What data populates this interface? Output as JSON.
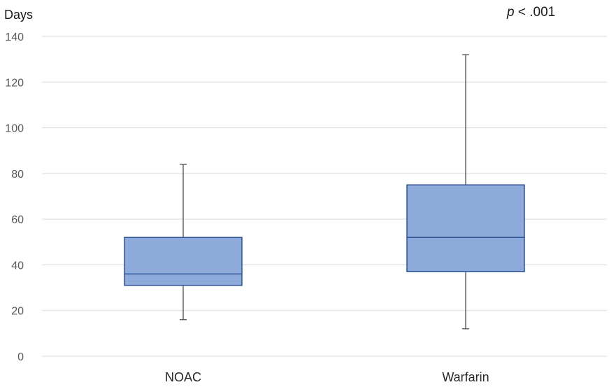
{
  "chart_data": {
    "type": "boxplot",
    "ylabel": "Days",
    "ylim": [
      0,
      140
    ],
    "yticks": [
      0,
      20,
      40,
      60,
      80,
      100,
      120,
      140
    ],
    "grid": true,
    "annotation": {
      "prefix": "p",
      "text": " < .001"
    },
    "colors": {
      "box_fill": "#8eaadb",
      "box_stroke": "#2f5496",
      "whisker": "#404040",
      "grid": "#d9d9d9"
    },
    "categories": [
      "NOAC",
      "Warfarin"
    ],
    "boxes": [
      {
        "category": "NOAC",
        "min": 16,
        "q1": 31,
        "median": 36,
        "q3": 52,
        "max": 84
      },
      {
        "category": "Warfarin",
        "min": 12,
        "q1": 37,
        "median": 52,
        "q3": 75,
        "max": 132
      }
    ]
  }
}
